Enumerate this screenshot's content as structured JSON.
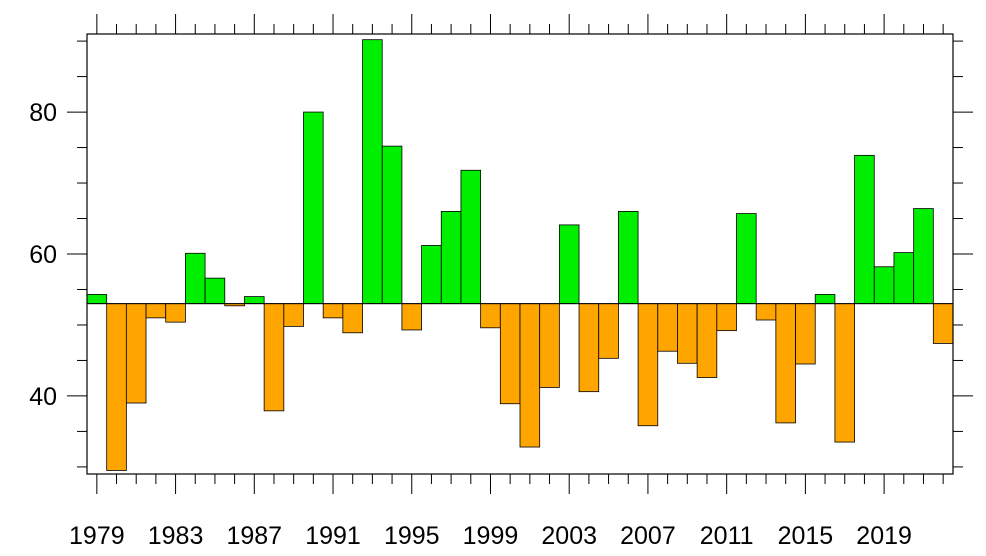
{
  "chart_data": {
    "type": "bar",
    "title": "",
    "xlabel": "",
    "ylabel": "",
    "baseline": 53,
    "ylim": [
      29,
      91
    ],
    "xlim": [
      1978.5,
      2022.5
    ],
    "grid": false,
    "legend": "none",
    "colors": {
      "above": "#00ee00",
      "below": "#ffa500"
    },
    "x_ticks": [
      1979,
      1983,
      1987,
      1991,
      1995,
      1999,
      2003,
      2007,
      2011,
      2015,
      2019
    ],
    "x_tick_labels": [
      "1979",
      "1983",
      "1987",
      "1991",
      "1995",
      "1999",
      "2003",
      "2007",
      "2011",
      "2015",
      "2019"
    ],
    "y_ticks": [
      40,
      60,
      80
    ],
    "y_tick_labels": [
      "40",
      "60",
      "80"
    ],
    "years": [
      1979,
      1980,
      1981,
      1982,
      1983,
      1984,
      1985,
      1986,
      1987,
      1988,
      1989,
      1990,
      1991,
      1992,
      1993,
      1994,
      1995,
      1996,
      1997,
      1998,
      1999,
      2000,
      2001,
      2002,
      2003,
      2004,
      2005,
      2006,
      2007,
      2008,
      2009,
      2010,
      2011,
      2012,
      2013,
      2014,
      2015,
      2016,
      2017,
      2018,
      2019,
      2020,
      2021,
      2022
    ],
    "values": [
      54.3,
      29.5,
      39.0,
      51.0,
      50.4,
      60.1,
      56.6,
      52.7,
      54.0,
      37.9,
      49.8,
      80.0,
      51.0,
      48.9,
      90.2,
      75.2,
      49.3,
      61.2,
      66.0,
      71.8,
      49.6,
      38.9,
      32.8,
      41.2,
      64.1,
      40.6,
      45.3,
      66.0,
      35.8,
      46.3,
      44.6,
      42.6,
      49.2,
      65.7,
      50.7,
      36.2,
      44.5,
      54.3,
      33.5,
      73.9,
      58.2,
      60.2,
      66.4,
      47.4
    ]
  }
}
